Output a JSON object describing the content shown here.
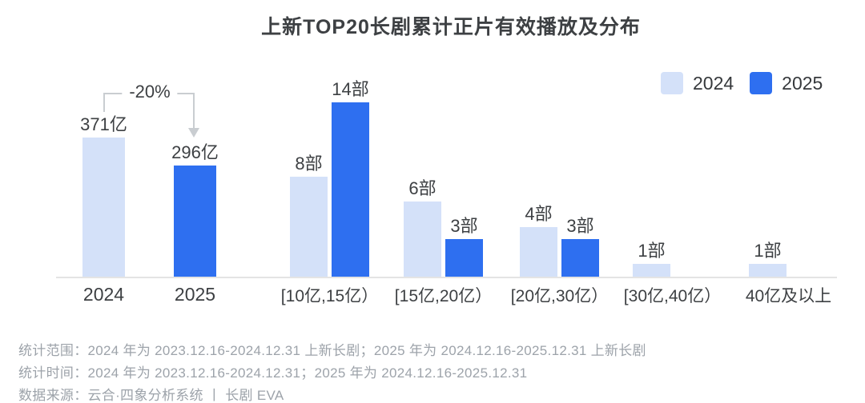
{
  "title": "上新TOP20长剧累计正片有效播放及分布",
  "legend": {
    "items": [
      {
        "label": "2024",
        "color": "#d4e1f9"
      },
      {
        "label": "2025",
        "color": "#2e6ff0"
      }
    ]
  },
  "colors": {
    "bar_2024": "#d4e1f9",
    "bar_2025": "#2e6ff0",
    "axis_line": "#e4e4e4",
    "arrow": "#c9cdd1",
    "label_text": "#3d4043",
    "footer_text": "#9da3aa"
  },
  "chart_data": [
    {
      "type": "bar",
      "name": "total-effective-playback",
      "categories": [
        "2024",
        "2025"
      ],
      "values": [
        371,
        296
      ],
      "unit": "亿",
      "value_labels": [
        "371亿",
        "296亿"
      ],
      "annotation": "-20%",
      "grid": false
    },
    {
      "type": "bar",
      "name": "playback-distribution",
      "categories": [
        "[10亿,15亿）",
        "[15亿,20亿）",
        "[20亿,30亿）",
        "[30亿,40亿）",
        "40亿及以上"
      ],
      "series": [
        {
          "name": "2024",
          "values": [
            8,
            6,
            4,
            1,
            1
          ]
        },
        {
          "name": "2025",
          "values": [
            14,
            3,
            3,
            null,
            null
          ]
        }
      ],
      "unit": "部",
      "value_label_suffix": "部",
      "legend_position": "top-right",
      "grid": false
    }
  ],
  "footer": {
    "lines": [
      "统计范围：2024 年为 2023.12.16-2024.12.31 上新长剧；2025 年为 2024.12.16-2025.12.31 上新长剧",
      "统计时间：2024 年为 2023.12.16-2024.12.31；2025 年为 2024.12.16-2025.12.31",
      "数据来源：云合·四象分析系统 丨 长剧 EVA"
    ]
  }
}
